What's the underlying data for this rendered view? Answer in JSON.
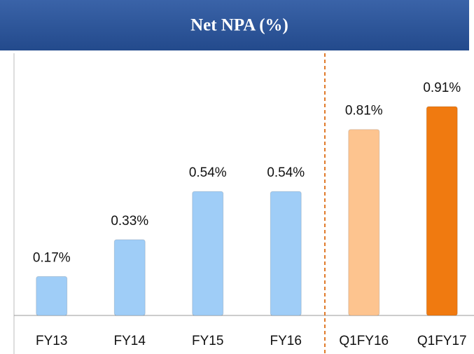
{
  "chart_data": {
    "type": "bar",
    "title": "Net NPA (%)",
    "categories": [
      "FY13",
      "FY14",
      "FY15",
      "FY16",
      "Q1FY16",
      "Q1FY17"
    ],
    "values": [
      0.17,
      0.33,
      0.54,
      0.54,
      0.81,
      0.91
    ],
    "value_labels": [
      "0.17%",
      "0.33%",
      "0.54%",
      "0.54%",
      "0.81%",
      "0.91%"
    ],
    "colors": [
      "#9fcdf7",
      "#9fcdf7",
      "#9fcdf7",
      "#9fcdf7",
      "#fdc48f",
      "#f07a10"
    ]
  }
}
